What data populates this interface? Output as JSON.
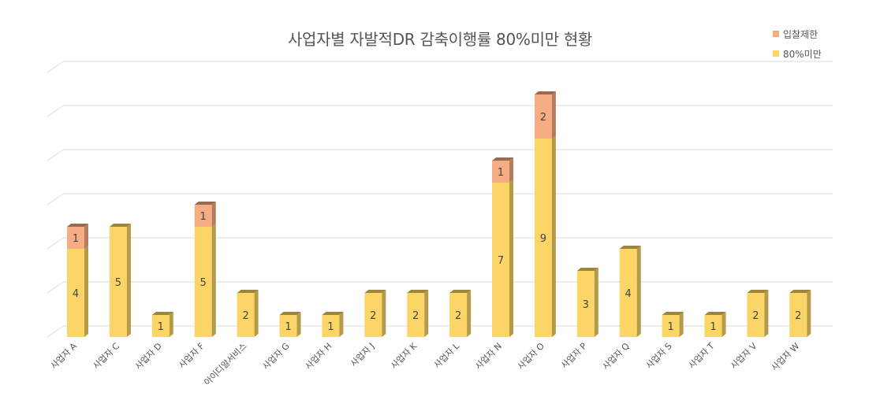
{
  "chart_data": {
    "type": "bar",
    "stacked": true,
    "title": "사업자별 자발적DR 감축이행률 80%미만 현황",
    "categories": [
      "사업자 A",
      "사업자 C",
      "사업자 D",
      "사업자 F",
      "아이디알서비스",
      "사업자 G",
      "사업자 H",
      "사업자 J",
      "사업자 K",
      "사업자 L",
      "사업자 N",
      "사업자 O",
      "사업자 P",
      "사업자 Q",
      "사업자 S",
      "사업자 T",
      "사업자 V",
      "사업자 W"
    ],
    "series": [
      {
        "name": "80%미만",
        "color": "#FBD666",
        "values": [
          4,
          5,
          1,
          5,
          2,
          1,
          1,
          2,
          2,
          2,
          7,
          9,
          3,
          4,
          1,
          1,
          2,
          2
        ]
      },
      {
        "name": "입찰제한",
        "color": "#F6AD83",
        "values": [
          1,
          0,
          0,
          1,
          0,
          0,
          0,
          0,
          0,
          0,
          1,
          2,
          0,
          0,
          0,
          0,
          0,
          0
        ]
      }
    ],
    "ylim": [
      0,
      12
    ],
    "grid": true,
    "legend": "top-right"
  },
  "legend": {
    "items": [
      {
        "label": "입찰제한",
        "color": "#F6AD83"
      },
      {
        "label": "80%미만",
        "color": "#FBD666"
      }
    ]
  }
}
